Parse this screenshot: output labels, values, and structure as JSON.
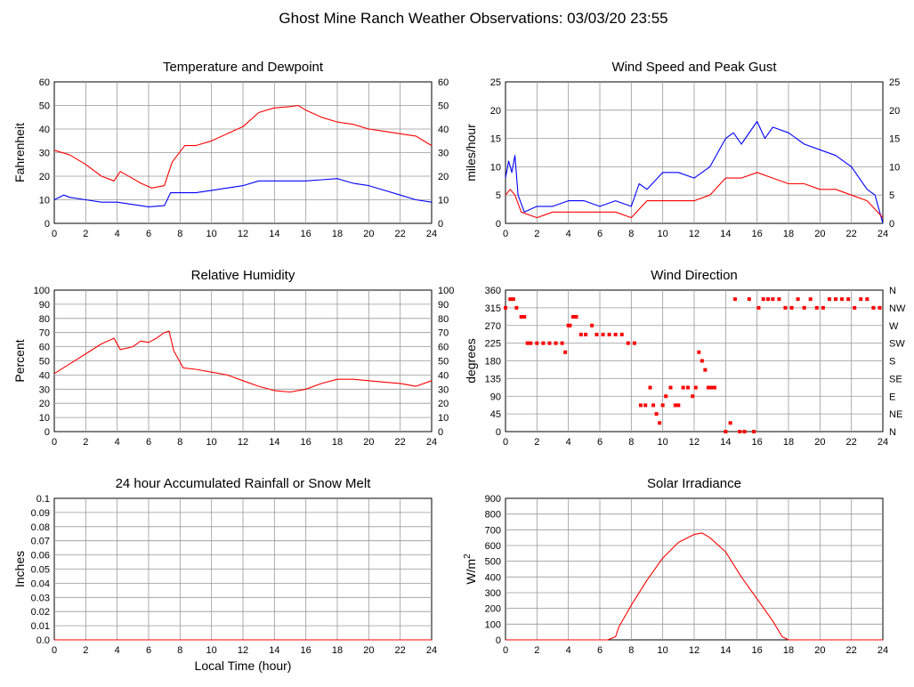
{
  "page_title": "Ghost Mine Ranch Weather Observations: 03/03/20 23:55",
  "x_axis_label": "Local Time (hour)",
  "colors": {
    "red": "#ff0000",
    "blue": "#0000ff",
    "grid": "#999999"
  },
  "chart_data": [
    {
      "id": "temp",
      "type": "line",
      "title": "Temperature and Dewpoint",
      "ylabel": "Fahrenheit",
      "xlim": [
        0,
        24
      ],
      "ylim": [
        0,
        60
      ],
      "yticks": [
        "0",
        "10",
        "20",
        "30",
        "40",
        "50",
        "60"
      ],
      "right_yticks": [
        "0",
        "10",
        "20",
        "30",
        "40",
        "50",
        "60"
      ],
      "xticks": [
        "0",
        "2",
        "4",
        "6",
        "8",
        "10",
        "12",
        "14",
        "16",
        "18",
        "20",
        "22",
        "24"
      ],
      "grid": true,
      "series": [
        {
          "color": "#ff0000",
          "x": [
            0,
            1,
            2,
            3,
            3.8,
            4.2,
            5,
            5.5,
            6.2,
            7,
            7.5,
            8.3,
            9,
            10,
            11,
            12,
            13,
            14,
            15,
            15.5,
            16,
            17,
            18,
            19,
            20,
            21,
            22,
            23,
            24
          ],
          "y": [
            31,
            29,
            25,
            20,
            18,
            22,
            19,
            17,
            15,
            16,
            26,
            33,
            33,
            35,
            38,
            41,
            47,
            49,
            49.5,
            50,
            48,
            45,
            43,
            42,
            40,
            39,
            38,
            37,
            33
          ]
        },
        {
          "color": "#0000ff",
          "x": [
            0,
            0.6,
            1,
            2,
            3,
            4,
            5,
            6,
            7,
            7.4,
            8,
            9,
            10,
            11,
            12,
            13,
            14,
            15,
            16,
            17,
            18,
            19,
            20,
            21,
            22,
            23,
            24
          ],
          "y": [
            10,
            12,
            11,
            10,
            9,
            9,
            8,
            7,
            7.5,
            13,
            13,
            13,
            14,
            15,
            16,
            18,
            18,
            18,
            18,
            18.5,
            19,
            17,
            16,
            14,
            12,
            10,
            9
          ]
        }
      ]
    },
    {
      "id": "wind",
      "type": "line",
      "title": "Wind Speed and Peak Gust",
      "ylabel": "miles/hour",
      "xlim": [
        0,
        24
      ],
      "ylim": [
        0,
        25
      ],
      "yticks": [
        "0",
        "5",
        "10",
        "15",
        "20",
        "25"
      ],
      "right_yticks": [
        "0",
        "5",
        "10",
        "15",
        "20",
        "25"
      ],
      "xticks": [
        "0",
        "2",
        "4",
        "6",
        "8",
        "10",
        "12",
        "14",
        "16",
        "18",
        "20",
        "22",
        "24"
      ],
      "grid": true,
      "series": [
        {
          "color": "#0000ff",
          "x": [
            0,
            0.2,
            0.4,
            0.6,
            0.8,
            1.2,
            2,
            3,
            4,
            5,
            6,
            7,
            8,
            8.5,
            9,
            10,
            11,
            12,
            13,
            14,
            14.5,
            15,
            16,
            16.5,
            17,
            18,
            19,
            20,
            21,
            22,
            23,
            23.5,
            24
          ],
          "y": [
            8,
            11,
            9,
            12,
            5,
            2,
            3,
            3,
            4,
            4,
            3,
            4,
            3,
            7,
            6,
            9,
            9,
            8,
            10,
            15,
            16,
            14,
            18,
            15,
            17,
            16,
            14,
            13,
            12,
            10,
            6,
            5,
            0
          ]
        },
        {
          "color": "#ff0000",
          "x": [
            0,
            0.3,
            0.6,
            1,
            2,
            3,
            4,
            5,
            6,
            7,
            8,
            9,
            10,
            11,
            12,
            13,
            14,
            15,
            16,
            17,
            18,
            19,
            20,
            21,
            22,
            23,
            24
          ],
          "y": [
            5,
            6,
            5,
            2,
            1,
            2,
            2,
            2,
            2,
            2,
            1,
            4,
            4,
            4,
            4,
            5,
            8,
            8,
            9,
            8,
            7,
            7,
            6,
            6,
            5,
            4,
            1
          ]
        }
      ]
    },
    {
      "id": "rh",
      "type": "line",
      "title": "Relative Humidity",
      "ylabel": "Percent",
      "xlim": [
        0,
        24
      ],
      "ylim": [
        0,
        100
      ],
      "yticks": [
        "0",
        "10",
        "20",
        "30",
        "40",
        "50",
        "60",
        "70",
        "80",
        "90",
        "100"
      ],
      "right_yticks": [
        "0",
        "10",
        "20",
        "30",
        "40",
        "50",
        "60",
        "70",
        "80",
        "90",
        "100"
      ],
      "xticks": [
        "0",
        "2",
        "4",
        "6",
        "8",
        "10",
        "12",
        "14",
        "16",
        "18",
        "20",
        "22",
        "24"
      ],
      "grid": true,
      "series": [
        {
          "color": "#ff0000",
          "x": [
            0,
            1,
            2,
            3,
            3.8,
            4.2,
            5,
            5.5,
            6,
            6.5,
            7,
            7.3,
            7.6,
            8.2,
            9,
            10,
            11,
            12,
            13,
            14,
            15,
            16,
            17,
            18,
            19,
            20,
            21,
            22,
            23,
            24
          ],
          "y": [
            41,
            48,
            55,
            62,
            66,
            58,
            60,
            64,
            63,
            66,
            70,
            71,
            57,
            45,
            44,
            42,
            40,
            36,
            32,
            29,
            28,
            30,
            34,
            37,
            37,
            36,
            35,
            34,
            32,
            36
          ]
        }
      ]
    },
    {
      "id": "dir",
      "type": "scatter",
      "title": "Wind Direction",
      "ylabel": "degrees",
      "xlim": [
        0,
        24
      ],
      "ylim": [
        0,
        360
      ],
      "yticks": [
        "0",
        "45",
        "90",
        "135",
        "180",
        "225",
        "270",
        "315",
        "360"
      ],
      "right_yticks": [
        "N",
        "NE",
        "E",
        "SE",
        "S",
        "SW",
        "W",
        "NW",
        "N"
      ],
      "xticks": [
        "0",
        "2",
        "4",
        "6",
        "8",
        "10",
        "12",
        "14",
        "16",
        "18",
        "20",
        "22",
        "24"
      ],
      "grid": true,
      "series": [
        {
          "color": "#ff0000",
          "x": [
            0,
            0.3,
            0.5,
            0.7,
            1.0,
            1.2,
            1.4,
            1.6,
            2.0,
            2.4,
            2.8,
            3.2,
            3.6,
            3.8,
            4.0,
            4.1,
            4.3,
            4.5,
            4.8,
            5.1,
            5.5,
            5.8,
            6.2,
            6.6,
            7.0,
            7.4,
            7.8,
            8.2,
            8.6,
            8.9,
            9.2,
            9.4,
            9.6,
            9.8,
            10.0,
            10.2,
            10.5,
            10.8,
            11.0,
            11.3,
            11.6,
            11.9,
            12.1,
            12.3,
            12.5,
            12.7,
            12.9,
            13.1,
            13.3,
            14.0,
            14.3,
            14.6,
            14.9,
            15.2,
            15.5,
            15.8,
            16.1,
            16.4,
            16.7,
            17.0,
            17.4,
            17.8,
            18.2,
            18.6,
            19.0,
            19.4,
            19.8,
            20.2,
            20.6,
            21.0,
            21.4,
            21.8,
            22.2,
            22.6,
            23.0,
            23.4,
            23.8
          ],
          "y": [
            315,
            337,
            337,
            315,
            292,
            292,
            225,
            225,
            225,
            225,
            225,
            225,
            225,
            202,
            270,
            270,
            292,
            292,
            247,
            247,
            270,
            247,
            247,
            247,
            247,
            247,
            225,
            225,
            67,
            67,
            112,
            67,
            45,
            22,
            67,
            90,
            112,
            67,
            67,
            112,
            112,
            90,
            112,
            202,
            180,
            157,
            112,
            112,
            112,
            0,
            22,
            337,
            0,
            0,
            337,
            0,
            315,
            337,
            337,
            337,
            337,
            315,
            315,
            337,
            315,
            337,
            315,
            315,
            337,
            337,
            337,
            337,
            315,
            337,
            337,
            315,
            315
          ]
        }
      ]
    },
    {
      "id": "rain",
      "type": "line",
      "title": "24 hour Accumulated Rainfall or Snow Melt",
      "ylabel": "Inches",
      "xlim": [
        0,
        24
      ],
      "ylim": [
        0,
        0.1
      ],
      "yticks": [
        "0.0",
        "0.01",
        "0.02",
        "0.03",
        "0.04",
        "0.05",
        "0.06",
        "0.07",
        "0.08",
        "0.09",
        "0.1"
      ],
      "right_yticks": [],
      "xticks": [
        "0",
        "2",
        "4",
        "6",
        "8",
        "10",
        "12",
        "14",
        "16",
        "18",
        "20",
        "22",
        "24"
      ],
      "grid": true,
      "series": [
        {
          "color": "#ff0000",
          "x": [
            0,
            24
          ],
          "y": [
            0,
            0
          ]
        }
      ]
    },
    {
      "id": "solar",
      "type": "line",
      "title": "Solar Irradiance",
      "ylabel": "W/m",
      "ylabel_sup": "2",
      "xlim": [
        0,
        24
      ],
      "ylim": [
        0,
        900
      ],
      "yticks": [
        "0",
        "100",
        "200",
        "300",
        "400",
        "500",
        "600",
        "700",
        "800",
        "900"
      ],
      "right_yticks": [],
      "xticks": [
        "0",
        "2",
        "4",
        "6",
        "8",
        "10",
        "12",
        "14",
        "16",
        "18",
        "20",
        "22",
        "24"
      ],
      "grid": true,
      "series": [
        {
          "color": "#ff0000",
          "x": [
            0,
            6.5,
            7,
            7.2,
            8,
            9,
            10,
            11,
            12,
            12.5,
            13,
            14,
            15,
            16,
            17,
            17.6,
            18,
            24
          ],
          "y": [
            0,
            0,
            20,
            80,
            220,
            380,
            520,
            620,
            670,
            680,
            650,
            560,
            400,
            260,
            120,
            20,
            0,
            0
          ]
        }
      ]
    }
  ]
}
